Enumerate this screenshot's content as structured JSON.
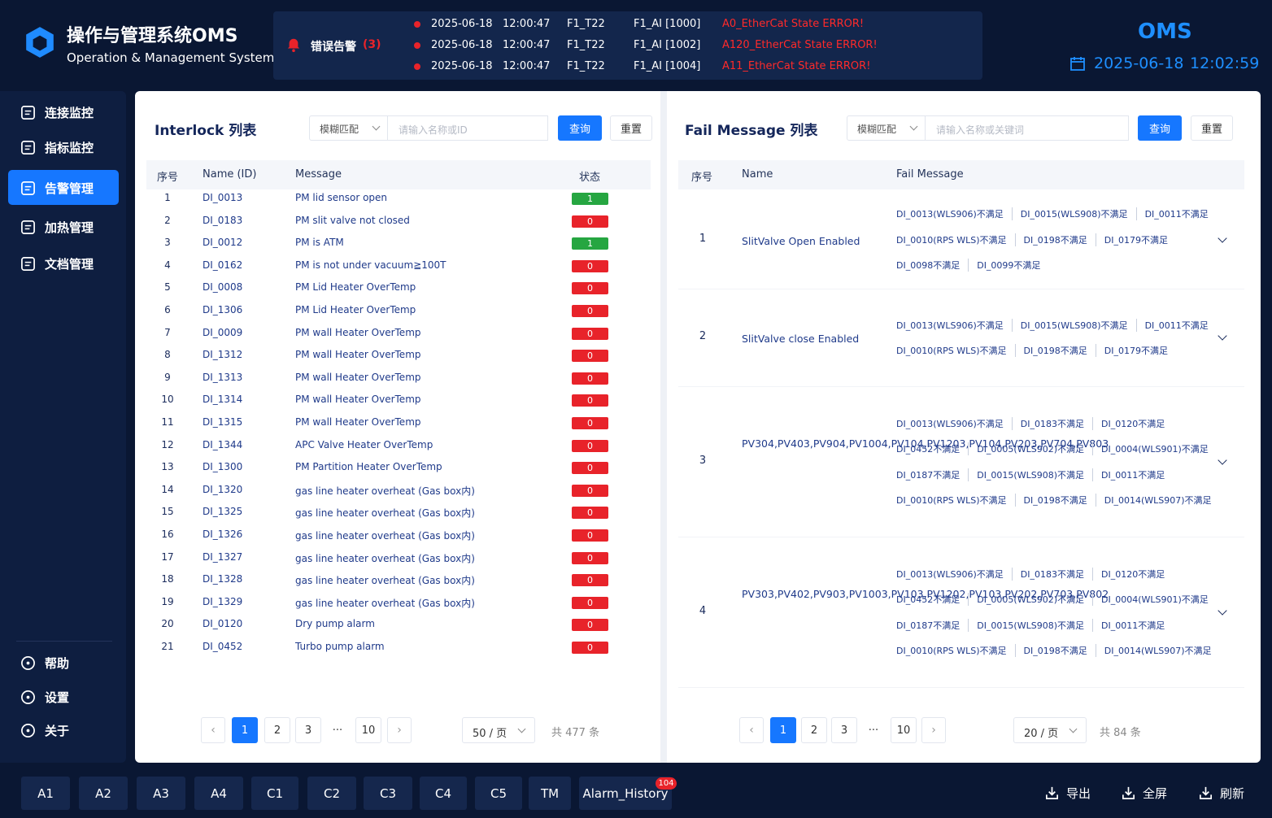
{
  "header": {
    "title": "操作与管理系统OMS",
    "subtitle": "Operation & Management System",
    "alarm": {
      "label": "错误告警",
      "count": "(3)",
      "rows": [
        [
          "2025-06-18",
          "12:00:47",
          "F1_T22",
          "F1_AI [1000]",
          "A0_EtherCat State ERROR!"
        ],
        [
          "2025-06-18",
          "12:00:47",
          "F1_T22",
          "F1_AI [1002]",
          "A120_EtherCat State ERROR!"
        ],
        [
          "2025-06-18",
          "12:00:47",
          "F1_T22",
          "F1_AI [1004]",
          "A11_EtherCat State ERROR!"
        ]
      ]
    },
    "brand": "OMS",
    "date": "2025-06-18",
    "time": "12:02:59"
  },
  "sidebar": {
    "nav": [
      "连接监控",
      "指标监控",
      "告警管理",
      "加热管理",
      "文档管理"
    ],
    "bottom": [
      "帮助",
      "设置",
      "关于"
    ]
  },
  "interlock": {
    "title": "Interlock 列表",
    "match": "模糊匹配",
    "placeholder": "请输入名称或ID",
    "search": "查询",
    "reset": "重置",
    "columns": [
      "序号",
      "Name (ID)",
      "Message",
      "状态"
    ],
    "rows": [
      [
        1,
        "DI_0013",
        "PM lid sensor open",
        1
      ],
      [
        2,
        "DI_0183",
        "PM slit valve not closed",
        0
      ],
      [
        3,
        "DI_0012",
        "PM is ATM",
        1
      ],
      [
        4,
        "DI_0162",
        "PM is not under vacuum≧100T",
        0
      ],
      [
        5,
        "DI_0008",
        "PM Lid Heater OverTemp",
        0
      ],
      [
        6,
        "DI_1306",
        "PM Lid Heater OverTemp",
        0
      ],
      [
        7,
        "DI_0009",
        "PM wall Heater OverTemp",
        0
      ],
      [
        8,
        "DI_1312",
        "PM wall Heater OverTemp",
        0
      ],
      [
        9,
        "DI_1313",
        "PM wall Heater OverTemp",
        0
      ],
      [
        10,
        "DI_1314",
        "PM wall Heater OverTemp",
        0
      ],
      [
        11,
        "DI_1315",
        "PM wall Heater OverTemp",
        0
      ],
      [
        12,
        "DI_1344",
        "APC Valve Heater OverTemp",
        0
      ],
      [
        13,
        "DI_1300",
        "PM Partition Heater OverTemp",
        0
      ],
      [
        14,
        "DI_1320",
        "gas line heater overheat (Gas box内)",
        0
      ],
      [
        15,
        "DI_1325",
        "gas line heater overheat (Gas box内)",
        0
      ],
      [
        16,
        "DI_1326",
        "gas line heater overheat (Gas box内)",
        0
      ],
      [
        17,
        "DI_1327",
        "gas line heater overheat (Gas box内)",
        0
      ],
      [
        18,
        "DI_1328",
        "gas line heater overheat (Gas box内)",
        0
      ],
      [
        19,
        "DI_1329",
        "gas line heater overheat (Gas box内)",
        0
      ],
      [
        20,
        "DI_0120",
        "Dry pump alarm",
        0
      ],
      [
        21,
        "DI_0452",
        "Turbo pump alarm",
        0
      ]
    ],
    "pages": [
      "1",
      "2",
      "3",
      "···",
      "10"
    ],
    "page_size": "50 / 页",
    "total": "共 477 条"
  },
  "fail": {
    "title": "Fail Message 列表",
    "match": "模糊匹配",
    "placeholder": "请输入名称或关键词",
    "search": "查询",
    "reset": "重置",
    "columns": [
      "序号",
      "Name",
      "Fail Message"
    ],
    "rows": [
      {
        "no": 1,
        "name": "SlitValve Open Enabled",
        "lines": [
          [
            "DI_0013(WLS906)不满足",
            "DI_0015(WLS908)不满足",
            "DI_0011不满足"
          ],
          [
            "DI_0010(RPS WLS)不满足",
            "DI_0198不满足",
            "DI_0179不满足"
          ],
          [
            "DI_0098不满足",
            "DI_0099不满足"
          ]
        ]
      },
      {
        "no": 2,
        "name": "SlitValve close Enabled",
        "lines": [
          [
            "DI_0013(WLS906)不满足",
            "DI_0015(WLS908)不满足",
            "DI_0011不满足"
          ],
          [
            "DI_0010(RPS WLS)不满足",
            "DI_0198不满足",
            "DI_0179不满足"
          ]
        ]
      },
      {
        "no": 3,
        "name": "PV304,PV403,PV904,PV1004,PV104,PV1203,PV104,PV203,PV704,PV803",
        "lines": [
          [
            "DI_0013(WLS906)不满足",
            "DI_0183不满足",
            "DI_0120不满足"
          ],
          [
            "DI_0452不满足",
            "DI_0005(WLS902)不满足",
            "DI_0004(WLS901)不满足"
          ],
          [
            "DI_0187不满足",
            "DI_0015(WLS908)不满足",
            "DI_0011不满足"
          ],
          [
            "DI_0010(RPS WLS)不满足",
            "DI_0198不满足",
            "DI_0014(WLS907)不满足"
          ]
        ]
      },
      {
        "no": 4,
        "name": "PV303,PV402,PV903,PV1003,PV103,PV1202,PV103,PV202,PV703,PV802",
        "lines": [
          [
            "DI_0013(WLS906)不满足",
            "DI_0183不满足",
            "DI_0120不满足"
          ],
          [
            "DI_0452不满足",
            "DI_0005(WLS902)不满足",
            "DI_0004(WLS901)不满足"
          ],
          [
            "DI_0187不满足",
            "DI_0015(WLS908)不满足",
            "DI_0011不满足"
          ],
          [
            "DI_0010(RPS WLS)不满足",
            "DI_0198不满足",
            "DI_0014(WLS907)不满足"
          ]
        ]
      }
    ],
    "pages": [
      "1",
      "2",
      "3",
      "···",
      "10"
    ],
    "page_size": "20 / 页",
    "total": "共 84 条"
  },
  "footer": {
    "tabs": [
      "A1",
      "A2",
      "A3",
      "A4",
      "C1",
      "C2",
      "C3",
      "C4",
      "C5",
      "TM",
      "Alarm_History"
    ],
    "badge": 104,
    "actions": [
      "导出",
      "全屏",
      "刷新"
    ]
  }
}
